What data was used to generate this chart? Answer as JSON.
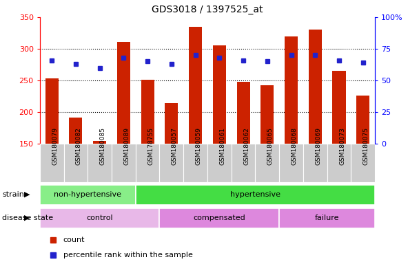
{
  "title": "GDS3018 / 1397525_at",
  "samples": [
    "GSM180079",
    "GSM180082",
    "GSM180085",
    "GSM180089",
    "GSM178755",
    "GSM180057",
    "GSM180059",
    "GSM180061",
    "GSM180062",
    "GSM180065",
    "GSM180068",
    "GSM180069",
    "GSM180073",
    "GSM180075"
  ],
  "counts": [
    253,
    192,
    155,
    311,
    251,
    214,
    335,
    305,
    248,
    242,
    320,
    330,
    265,
    226
  ],
  "percentile_ranks": [
    66,
    63,
    60,
    68,
    65,
    63,
    70,
    68,
    66,
    65,
    70,
    70,
    66,
    64
  ],
  "ymin": 150,
  "ymax": 350,
  "yticks_left": [
    150,
    200,
    250,
    300,
    350
  ],
  "right_yticks": [
    0,
    25,
    50,
    75,
    100
  ],
  "right_ylabels": [
    "0",
    "25",
    "50",
    "75",
    "100%"
  ],
  "bar_color": "#cc2200",
  "dot_color": "#2222cc",
  "strain_groups": [
    {
      "label": "non-hypertensive",
      "start": 0,
      "end": 4,
      "color": "#88ee88"
    },
    {
      "label": "hypertensive",
      "start": 4,
      "end": 14,
      "color": "#44dd44"
    }
  ],
  "disease_groups": [
    {
      "label": "control",
      "start": 0,
      "end": 5,
      "color": "#e8b8e8"
    },
    {
      "label": "compensated",
      "start": 5,
      "end": 10,
      "color": "#dd88dd"
    },
    {
      "label": "failure",
      "start": 10,
      "end": 14,
      "color": "#dd88dd"
    }
  ],
  "legend_count_label": "count",
  "legend_pct_label": "percentile rank within the sample",
  "strain_label": "strain",
  "disease_label": "disease state",
  "tick_bg_color": "#cccccc",
  "bg_color": "#ffffff",
  "dotted_line_color": "#000000",
  "grid_lines": [
    200,
    250,
    300
  ]
}
